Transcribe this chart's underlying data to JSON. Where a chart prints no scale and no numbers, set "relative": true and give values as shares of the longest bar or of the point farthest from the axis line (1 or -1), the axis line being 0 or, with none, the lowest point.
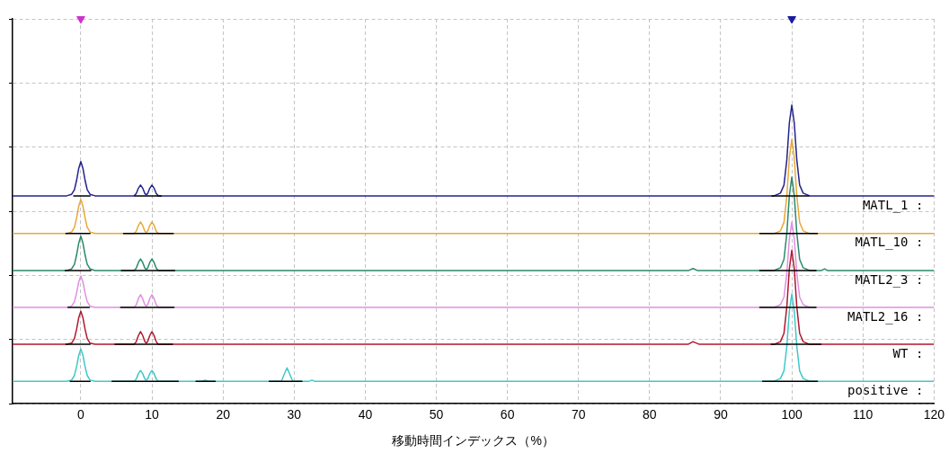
{
  "chart_data": {
    "type": "line",
    "relative": true,
    "xlabel": "移動時間インデックス（%）",
    "xlim": [
      -9.6,
      120
    ],
    "xticks": [
      0,
      10,
      20,
      30,
      40,
      50,
      60,
      70,
      80,
      90,
      100,
      110,
      120
    ],
    "grid": true,
    "series": [
      {
        "name": "MATL_1 :",
        "type": "line",
        "color": "#23238e",
        "x": [
          -9.6,
          -2,
          -1.3,
          -0.9,
          -0.6,
          -0.3,
          0,
          0.3,
          0.6,
          0.9,
          1.3,
          2,
          7.5,
          7.8,
          8.1,
          8.4,
          8.7,
          9,
          9.2,
          9.4,
          9.7,
          10,
          10.3,
          10.6,
          10.9,
          97.5,
          98.4,
          98.9,
          99.3,
          99.65,
          100,
          100.35,
          100.7,
          101.1,
          101.6,
          102.5,
          120
        ],
        "values": [
          0.54,
          0.54,
          0.544,
          0.556,
          0.58,
          0.611,
          0.629,
          0.611,
          0.58,
          0.556,
          0.544,
          0.54,
          0.54,
          0.546,
          0.56,
          0.568,
          0.56,
          0.546,
          0.543,
          0.546,
          0.56,
          0.568,
          0.56,
          0.546,
          0.54,
          0.54,
          0.547,
          0.568,
          0.634,
          0.729,
          0.776,
          0.729,
          0.634,
          0.568,
          0.547,
          0.54,
          0.54
        ]
      },
      {
        "name": "MATL_10 :",
        "type": "line",
        "color": "#e8a838",
        "x": [
          -9.6,
          -2,
          -1.3,
          -0.9,
          -0.6,
          -0.3,
          0,
          0.3,
          0.6,
          0.9,
          1.3,
          2,
          7.5,
          7.8,
          8.1,
          8.4,
          8.7,
          9,
          9.2,
          9.4,
          9.7,
          10,
          10.3,
          10.6,
          10.9,
          97.5,
          98.4,
          98.9,
          99.3,
          99.65,
          100,
          100.35,
          100.7,
          101.1,
          101.6,
          102.5,
          120
        ],
        "values": [
          0.442,
          0.442,
          0.446,
          0.458,
          0.482,
          0.513,
          0.531,
          0.513,
          0.482,
          0.458,
          0.446,
          0.442,
          0.442,
          0.448,
          0.463,
          0.472,
          0.463,
          0.448,
          0.445,
          0.448,
          0.463,
          0.472,
          0.463,
          0.448,
          0.442,
          0.442,
          0.449,
          0.471,
          0.54,
          0.638,
          0.687,
          0.638,
          0.54,
          0.471,
          0.449,
          0.442,
          0.442
        ]
      },
      {
        "name": "MATL2_3 :",
        "type": "line",
        "color": "#2a8a6a",
        "x": [
          -9.6,
          -2,
          -1.3,
          -0.9,
          -0.6,
          -0.3,
          0,
          0.3,
          0.6,
          0.9,
          1.3,
          2,
          7.5,
          7.8,
          8.1,
          8.4,
          8.7,
          9,
          9.2,
          9.4,
          9.7,
          10,
          10.3,
          10.6,
          10.9,
          85.5,
          86.1,
          86.7,
          97.5,
          98.4,
          98.9,
          99.3,
          99.65,
          100,
          100.35,
          100.7,
          101.1,
          101.6,
          102.5,
          104.2,
          104.6,
          105,
          120
        ],
        "values": [
          0.346,
          0.346,
          0.35,
          0.362,
          0.386,
          0.417,
          0.435,
          0.417,
          0.386,
          0.362,
          0.35,
          0.346,
          0.346,
          0.352,
          0.367,
          0.376,
          0.367,
          0.352,
          0.349,
          0.352,
          0.367,
          0.376,
          0.367,
          0.352,
          0.346,
          0.346,
          0.351,
          0.346,
          0.346,
          0.353,
          0.375,
          0.443,
          0.54,
          0.589,
          0.54,
          0.443,
          0.375,
          0.353,
          0.346,
          0.346,
          0.35,
          0.346,
          0.346
        ]
      },
      {
        "name": "MATL2_16 :",
        "type": "line",
        "color": "#e090e0",
        "x": [
          -9.6,
          -2,
          -1.3,
          -0.9,
          -0.6,
          -0.3,
          0,
          0.3,
          0.6,
          0.9,
          1.3,
          2,
          7.5,
          7.8,
          8.1,
          8.4,
          8.7,
          9,
          9.2,
          9.4,
          9.7,
          10,
          10.3,
          10.6,
          10.9,
          97.5,
          98.4,
          98.9,
          99.3,
          99.65,
          100,
          100.35,
          100.7,
          101.1,
          101.6,
          102.5,
          120
        ],
        "values": [
          0.25,
          0.25,
          0.253,
          0.265,
          0.287,
          0.316,
          0.332,
          0.316,
          0.287,
          0.265,
          0.253,
          0.25,
          0.25,
          0.257,
          0.273,
          0.283,
          0.273,
          0.257,
          0.253,
          0.257,
          0.273,
          0.283,
          0.273,
          0.257,
          0.25,
          0.25,
          0.257,
          0.277,
          0.339,
          0.428,
          0.472,
          0.428,
          0.339,
          0.277,
          0.257,
          0.25,
          0.25
        ]
      },
      {
        "name": "WT :",
        "type": "line",
        "color": "#b01830",
        "x": [
          -9.6,
          -2,
          -1.3,
          -0.9,
          -0.6,
          -0.3,
          0,
          0.3,
          0.6,
          0.9,
          1.3,
          2,
          7.5,
          7.8,
          8.1,
          8.4,
          8.7,
          9,
          9.2,
          9.4,
          9.7,
          10,
          10.3,
          10.6,
          10.9,
          85.4,
          86.1,
          87,
          97.5,
          98.4,
          98.9,
          99.3,
          99.65,
          100,
          100.35,
          100.7,
          101.1,
          101.6,
          102.5,
          120
        ],
        "values": [
          0.154,
          0.154,
          0.157,
          0.169,
          0.193,
          0.223,
          0.24,
          0.223,
          0.193,
          0.169,
          0.157,
          0.154,
          0.154,
          0.161,
          0.177,
          0.187,
          0.177,
          0.161,
          0.157,
          0.161,
          0.177,
          0.187,
          0.177,
          0.161,
          0.154,
          0.154,
          0.161,
          0.154,
          0.154,
          0.161,
          0.183,
          0.252,
          0.35,
          0.399,
          0.35,
          0.252,
          0.183,
          0.161,
          0.154,
          0.154
        ]
      },
      {
        "name": "positive :",
        "type": "line",
        "color": "#40c8c8",
        "x": [
          -9.6,
          -2,
          -1.3,
          -0.9,
          -0.6,
          -0.3,
          0,
          0.3,
          0.6,
          0.9,
          1.3,
          2,
          7.5,
          7.8,
          8.1,
          8.4,
          8.7,
          9,
          9.2,
          9.4,
          9.7,
          10,
          10.3,
          10.6,
          10.9,
          17,
          17.5,
          18,
          28.2,
          28.6,
          29,
          29.4,
          29.8,
          32.1,
          32.5,
          32.9,
          97.5,
          98.4,
          98.9,
          99.3,
          99.65,
          100,
          100.35,
          100.7,
          101.1,
          101.6,
          102.5,
          120
        ],
        "values": [
          0.058,
          0.058,
          0.061,
          0.073,
          0.096,
          0.125,
          0.142,
          0.125,
          0.096,
          0.073,
          0.061,
          0.058,
          0.058,
          0.064,
          0.078,
          0.086,
          0.078,
          0.064,
          0.061,
          0.064,
          0.078,
          0.086,
          0.078,
          0.064,
          0.058,
          0.058,
          0.061,
          0.058,
          0.058,
          0.076,
          0.093,
          0.076,
          0.058,
          0.058,
          0.061,
          0.058,
          0.058,
          0.065,
          0.085,
          0.149,
          0.24,
          0.285,
          0.24,
          0.149,
          0.085,
          0.065,
          0.058,
          0.058
        ]
      },
      {
        "type": "line",
        "color": "#000000",
        "x": [
          -1,
          1.3,
          4,
          7.6,
          11.3,
          50,
          97.2,
          102.4
        ],
        "values": [
          0.54,
          0.54,
          null,
          0.54,
          0.54,
          null,
          0.54,
          0.54
        ]
      },
      {
        "type": "line",
        "color": "#000000",
        "x": [
          -2.1,
          1.3,
          4,
          6,
          13,
          50,
          95.5,
          103.6
        ],
        "values": [
          0.442,
          0.442,
          null,
          0.442,
          0.442,
          null,
          0.442,
          0.442
        ]
      },
      {
        "type": "line",
        "color": "#000000",
        "x": [
          -2.2,
          1.4,
          4,
          5.7,
          13.2,
          50,
          95.5,
          103.4
        ],
        "values": [
          0.346,
          0.346,
          null,
          0.346,
          0.346,
          null,
          0.346,
          0.346
        ]
      },
      {
        "type": "line",
        "color": "#000000",
        "x": [
          -1.8,
          1.2,
          4,
          5.6,
          13.1,
          50,
          95.5,
          103.4
        ],
        "values": [
          0.25,
          0.25,
          null,
          0.25,
          0.25,
          null,
          0.25,
          0.25
        ]
      },
      {
        "type": "line",
        "color": "#000000",
        "x": [
          -2.1,
          1.3,
          3,
          4.8,
          12.9,
          50,
          97.1,
          104.1
        ],
        "values": [
          0.154,
          0.154,
          null,
          0.154,
          0.154,
          null,
          0.154,
          0.154
        ]
      },
      {
        "type": "line",
        "color": "#000000",
        "x": [
          -1.5,
          1.3,
          3,
          4.4,
          13.7,
          15,
          16.2,
          18.9,
          22,
          26.5,
          31.1,
          50,
          95.9,
          103.6
        ],
        "values": [
          0.058,
          0.058,
          null,
          0.058,
          0.058,
          null,
          0.058,
          0.058,
          null,
          0.058,
          0.058,
          null,
          0.058,
          0.058
        ]
      },
      {
        "type": "scatter",
        "marker": "triangle",
        "color": "#cc33cc",
        "x": [
          0
        ],
        "values": [
          1
        ]
      },
      {
        "type": "scatter",
        "marker": "triangle",
        "color": "#1a1a9c",
        "x": [
          100
        ],
        "values": [
          1
        ]
      }
    ]
  }
}
